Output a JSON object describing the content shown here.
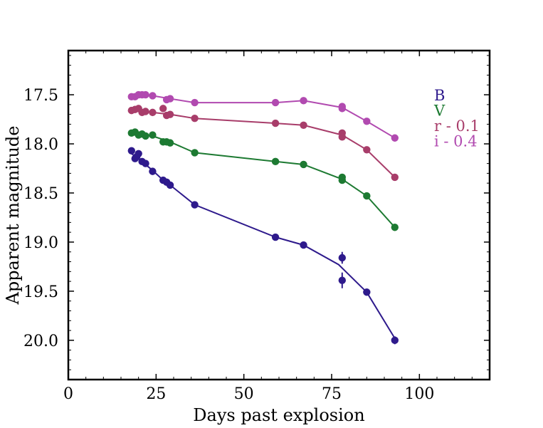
{
  "chart_data": {
    "type": "line",
    "title": "",
    "xlabel": "Days past explosion",
    "ylabel": "Apparent magnitude",
    "xlim": [
      0,
      120
    ],
    "ylim": [
      20.4,
      17.05
    ],
    "y_inverted": true,
    "xticks": [
      0,
      25,
      50,
      75,
      100
    ],
    "yticks": [
      17.5,
      18.0,
      18.5,
      19.0,
      19.5,
      20.0
    ],
    "xtick_labels": [
      "0",
      "25",
      "50",
      "75",
      "100"
    ],
    "ytick_labels": [
      "17.5",
      "18.0",
      "18.5",
      "19.0",
      "19.5",
      "20.0"
    ],
    "grid": false,
    "legend_position": "top-right",
    "series": [
      {
        "name": "B",
        "color": "#2e1a8c",
        "points": [
          {
            "x": 18.0,
            "y": 18.07
          },
          {
            "x": 19.0,
            "y": 18.15
          },
          {
            "x": 19.5,
            "y": 18.13
          },
          {
            "x": 20.0,
            "y": 18.1
          },
          {
            "x": 21.0,
            "y": 18.18
          },
          {
            "x": 22.0,
            "y": 18.2
          },
          {
            "x": 24.0,
            "y": 18.28
          },
          {
            "x": 27.0,
            "y": 18.37
          },
          {
            "x": 28.0,
            "y": 18.39
          },
          {
            "x": 29.0,
            "y": 18.42
          },
          {
            "x": 36.0,
            "y": 18.62
          },
          {
            "x": 59.0,
            "y": 18.95
          },
          {
            "x": 67.0,
            "y": 19.03
          },
          {
            "x": 78.0,
            "y": 19.16,
            "err": 0.06
          },
          {
            "x": 78.0,
            "y": 19.39,
            "err": 0.08
          },
          {
            "x": 85.0,
            "y": 19.51
          },
          {
            "x": 93.0,
            "y": 20.0,
            "err": 0.04
          }
        ],
        "line": [
          [
            18.0,
            18.1
          ],
          [
            20.0,
            18.15
          ],
          [
            24.0,
            18.27
          ],
          [
            27.0,
            18.37
          ],
          [
            29.0,
            18.42
          ],
          [
            36.0,
            18.62
          ],
          [
            59.0,
            18.95
          ],
          [
            67.0,
            19.03
          ],
          [
            77.0,
            19.23
          ],
          [
            85.0,
            19.51
          ],
          [
            93.0,
            19.98
          ]
        ]
      },
      {
        "name": "V",
        "color": "#1d7a32",
        "points": [
          {
            "x": 18.0,
            "y": 17.89
          },
          {
            "x": 19.0,
            "y": 17.88
          },
          {
            "x": 20.0,
            "y": 17.91
          },
          {
            "x": 21.0,
            "y": 17.9
          },
          {
            "x": 22.0,
            "y": 17.92
          },
          {
            "x": 24.0,
            "y": 17.91
          },
          {
            "x": 27.0,
            "y": 17.98
          },
          {
            "x": 28.0,
            "y": 17.98
          },
          {
            "x": 29.0,
            "y": 17.99
          },
          {
            "x": 36.0,
            "y": 18.09
          },
          {
            "x": 59.0,
            "y": 18.18
          },
          {
            "x": 67.0,
            "y": 18.21
          },
          {
            "x": 78.0,
            "y": 18.34
          },
          {
            "x": 78.0,
            "y": 18.37
          },
          {
            "x": 85.0,
            "y": 18.53
          },
          {
            "x": 93.0,
            "y": 18.85
          }
        ],
        "line": [
          [
            18.0,
            17.88
          ],
          [
            24.0,
            17.92
          ],
          [
            29.0,
            17.98
          ],
          [
            36.0,
            18.09
          ],
          [
            59.0,
            18.18
          ],
          [
            67.0,
            18.21
          ],
          [
            78.0,
            18.36
          ],
          [
            85.0,
            18.53
          ],
          [
            93.0,
            18.85
          ]
        ]
      },
      {
        "name": "r - 0.1",
        "color": "#a83d6a",
        "points": [
          {
            "x": 18.0,
            "y": 17.66
          },
          {
            "x": 19.0,
            "y": 17.65
          },
          {
            "x": 20.0,
            "y": 17.64
          },
          {
            "x": 21.0,
            "y": 17.68
          },
          {
            "x": 22.0,
            "y": 17.67
          },
          {
            "x": 24.0,
            "y": 17.68
          },
          {
            "x": 27.0,
            "y": 17.64
          },
          {
            "x": 28.0,
            "y": 17.71
          },
          {
            "x": 29.0,
            "y": 17.7
          },
          {
            "x": 36.0,
            "y": 17.74
          },
          {
            "x": 59.0,
            "y": 17.79
          },
          {
            "x": 67.0,
            "y": 17.81
          },
          {
            "x": 78.0,
            "y": 17.89
          },
          {
            "x": 78.0,
            "y": 17.93
          },
          {
            "x": 85.0,
            "y": 18.06
          },
          {
            "x": 93.0,
            "y": 18.34
          }
        ],
        "line": [
          [
            18.0,
            17.66
          ],
          [
            24.0,
            17.68
          ],
          [
            29.0,
            17.7
          ],
          [
            36.0,
            17.74
          ],
          [
            59.0,
            17.79
          ],
          [
            67.0,
            17.81
          ],
          [
            78.0,
            17.91
          ],
          [
            85.0,
            18.06
          ],
          [
            93.0,
            18.34
          ]
        ]
      },
      {
        "name": "i - 0.4",
        "color": "#b14ab0",
        "points": [
          {
            "x": 18.0,
            "y": 17.52
          },
          {
            "x": 19.0,
            "y": 17.52
          },
          {
            "x": 20.0,
            "y": 17.5
          },
          {
            "x": 21.0,
            "y": 17.5
          },
          {
            "x": 22.0,
            "y": 17.5
          },
          {
            "x": 24.0,
            "y": 17.51
          },
          {
            "x": 28.0,
            "y": 17.55
          },
          {
            "x": 29.0,
            "y": 17.54
          },
          {
            "x": 36.0,
            "y": 17.58
          },
          {
            "x": 59.0,
            "y": 17.58
          },
          {
            "x": 67.0,
            "y": 17.56
          },
          {
            "x": 78.0,
            "y": 17.62
          },
          {
            "x": 78.0,
            "y": 17.64
          },
          {
            "x": 85.0,
            "y": 17.77
          },
          {
            "x": 93.0,
            "y": 17.94
          }
        ],
        "line": [
          [
            18.0,
            17.52
          ],
          [
            24.0,
            17.51
          ],
          [
            29.0,
            17.54
          ],
          [
            36.0,
            17.58
          ],
          [
            59.0,
            17.58
          ],
          [
            67.0,
            17.56
          ],
          [
            78.0,
            17.63
          ],
          [
            85.0,
            17.77
          ],
          [
            93.0,
            17.94
          ]
        ]
      }
    ]
  }
}
